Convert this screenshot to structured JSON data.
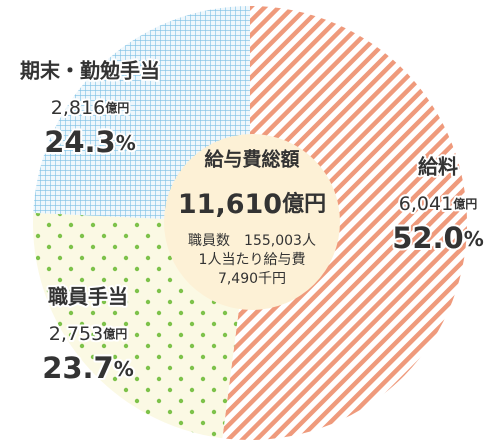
{
  "chart_data": {
    "type": "pie",
    "categories": [
      "給料",
      "職員手当",
      "期末・勤勉手当"
    ],
    "values": [
      6041,
      2753,
      2816
    ],
    "value_labels": [
      "6,041",
      "2,753",
      "2,816"
    ],
    "unit": "億円",
    "percents": [
      52.0,
      23.7,
      24.3
    ],
    "percent_labels": [
      "52.0",
      "23.7",
      "24.3"
    ],
    "percent_unit": "%",
    "colors": [
      "#ef9a7c",
      "#7dc24a",
      "#7cc0e4"
    ],
    "backgrounds": [
      "#ffffff",
      "#fbf9e4",
      "#eef7fc"
    ],
    "patterns": [
      "stripes",
      "dots",
      "grid"
    ],
    "center_title": "給与費総額",
    "total_label": "11,610",
    "center_lines": [
      "職員数　155,003人",
      "1人当たり給与費",
      "7,490千円"
    ],
    "center_color": "#fdf1d6"
  }
}
